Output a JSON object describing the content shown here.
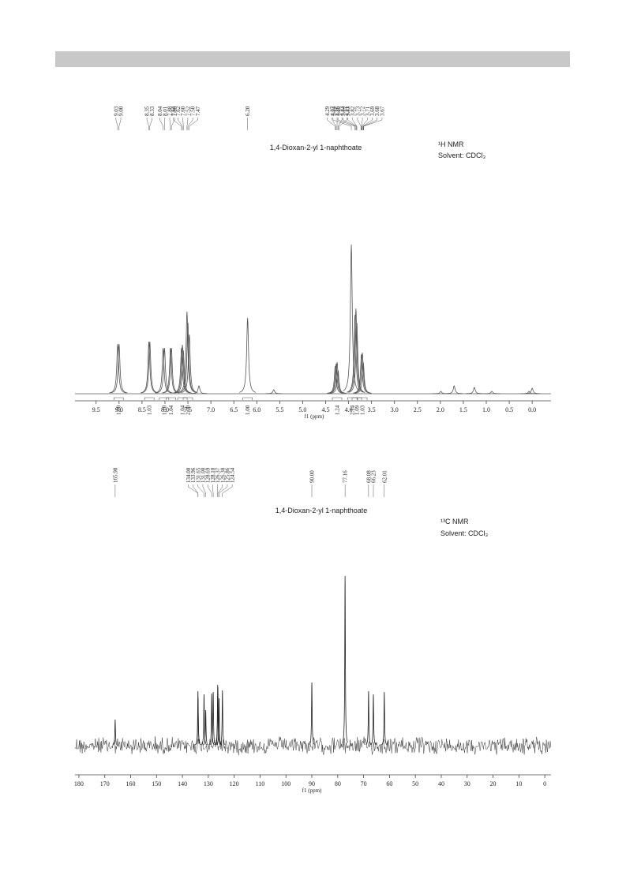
{
  "chart_data": [
    {
      "type": "spectrum",
      "title": "1,4-Dioxan-2-yl 1-naphthoate",
      "nucleus": "¹H NMR",
      "solvent": "Solvent: CDCl₃",
      "xlabel": "f1 (ppm)",
      "xlim": [
        9.96,
        -0.41
      ],
      "xticks": [
        9.5,
        {
          "value": 9,
          "label": "9.0"
        },
        8.5,
        {
          "value": 8,
          "label": "8.0"
        },
        7.5,
        {
          "value": 7,
          "label": "7.0"
        },
        6.5,
        {
          "value": 6,
          "label": "6.0"
        },
        5.5,
        {
          "value": 5,
          "label": "5.0"
        },
        4.5,
        {
          "value": 4,
          "label": "4.0"
        },
        3.5,
        {
          "value": 3,
          "label": "3.0"
        },
        2.5,
        {
          "value": 2,
          "label": "2.0"
        },
        1.5,
        {
          "value": 1,
          "label": "1.0"
        },
        0.5,
        {
          "value": 0,
          "label": "0.0"
        }
      ],
      "x": [
        9.03,
        9.0,
        8.35,
        8.33,
        8.04,
        8.01,
        7.88,
        7.86,
        7.64,
        7.62,
        7.6,
        7.52,
        7.5,
        7.47,
        7.26,
        6.2,
        5.63,
        4.29,
        4.27,
        4.25,
        4.23,
        3.94,
        3.86,
        3.84,
        3.82,
        3.72,
        3.7,
        3.68,
        1.99,
        1.7,
        1.26,
        0.88,
        0.07,
        0
      ],
      "values": [
        63,
        63,
        66,
        66,
        58,
        58,
        58,
        58,
        58,
        62,
        55,
        104,
        90,
        75,
        10,
        96,
        5,
        35,
        38,
        40,
        30,
        189,
        100,
        108,
        90,
        50,
        52,
        40,
        3,
        10,
        8,
        3,
        3,
        7
      ],
      "peak_labels": [
        9.03,
        {
          "value": 9,
          "label": "9.00"
        },
        8.35,
        8.33,
        8.04,
        8.01,
        7.88,
        7.86,
        7.64,
        7.62,
        {
          "value": 7.6,
          "label": "7.60"
        },
        7.52,
        {
          "value": 7.5,
          "label": "7.50"
        },
        7.47,
        {
          "value": 6.2,
          "label": "6.20"
        },
        4.29,
        4.27,
        4.25,
        4.23,
        4.21,
        3.94,
        3.86,
        3.84,
        3.83,
        3.82,
        3.73,
        3.72,
        3.71,
        3.69,
        3.68,
        3.67
      ],
      "integrals": [
        {
          "x": 9.01,
          "label": "1.00"
        },
        {
          "x": 8.34,
          "label": "1.03"
        },
        {
          "x": 8.02,
          "label": "1.10"
        },
        {
          "x": 7.87,
          "label": "1.04"
        },
        {
          "x": 7.62,
          "label": "1.04"
        },
        {
          "x": 7.5,
          "label": "2.00"
        },
        {
          "x": 6.2,
          "label": "1.00"
        },
        {
          "x": 4.25,
          "label": "1.24"
        },
        {
          "x": 3.92,
          "label": "2.14"
        },
        {
          "x": 3.82,
          "label": "1.09"
        },
        {
          "x": 3.7,
          "label": "1.03"
        }
      ],
      "color": "#555555"
    },
    {
      "type": "spectrum",
      "title": "1,4-Dioxan-2-yl 1-naphthoate",
      "nucleus": "¹³C NMR",
      "solvent": "Solvent: CDCl₃",
      "xlabel": "f1 (ppm)",
      "xlim": [
        181.5,
        -2.4
      ],
      "xticks": [
        180,
        170,
        160,
        150,
        140,
        130,
        120,
        110,
        100,
        90,
        80,
        70,
        60,
        50,
        40,
        30,
        20,
        10,
        0
      ],
      "x": [
        165.98,
        134.0,
        133.96,
        131.65,
        131.0,
        128.69,
        128.1,
        126.37,
        126.3,
        125.86,
        124.54,
        90.0,
        77.16,
        68.08,
        66.23,
        62.01
      ],
      "values": [
        33,
        69,
        60,
        65,
        45,
        66,
        68,
        77,
        74,
        60,
        70,
        80,
        215,
        69,
        65,
        68
      ],
      "peak_labels": [
        165.98,
        {
          "value": 134,
          "label": "134.00"
        },
        133.96,
        131.65,
        {
          "value": 131,
          "label": "131.00"
        },
        128.69,
        {
          "value": 128.1,
          "label": "128.10"
        },
        126.37,
        {
          "value": 126.3,
          "label": "126.30"
        },
        125.86,
        124.54,
        {
          "value": 90,
          "label": "90.00"
        },
        77.16,
        68.08,
        66.23,
        62.01
      ],
      "color": "#222222"
    }
  ]
}
